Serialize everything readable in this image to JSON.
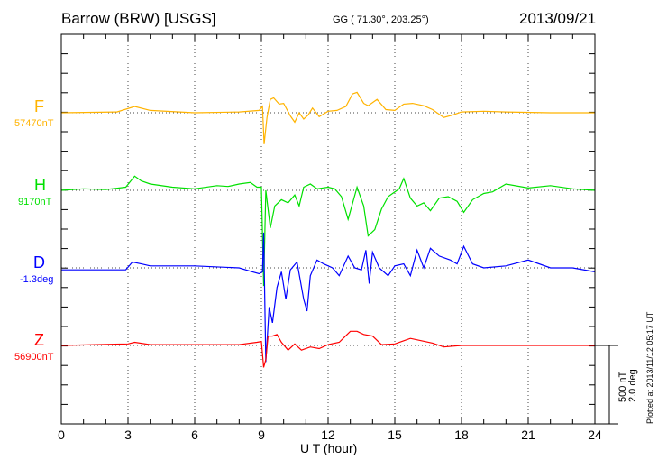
{
  "header": {
    "station": "Barrow (BRW)  [USGS]",
    "coords": "GG ( 71.30°, 203.25°)",
    "date": "2013/09/21"
  },
  "footer": {
    "plotted": "Plotted at 2013/11/12 05:17 UT",
    "scale_nt": "500 nT",
    "scale_deg": "2.0 deg"
  },
  "chart_data": {
    "type": "line",
    "title": "Barrow (BRW)  [USGS]",
    "xlabel": "U T (hour)",
    "xlim": [
      0,
      24
    ],
    "xticks": [
      "0",
      "3",
      "6",
      "9",
      "12",
      "15",
      "18",
      "21",
      "24"
    ],
    "grid": "dotted vertical lines every 3 hours, dotted baselines",
    "scale": {
      "nT_per_bar": 500,
      "deg_per_bar": 2.0
    },
    "colors": {
      "F": "#ffb300",
      "H": "#00e000",
      "D": "#0000ff",
      "Z": "#ff0000"
    },
    "series": [
      {
        "name": "F",
        "baseline_label": "57470nT",
        "unit": "nT",
        "points": [
          [
            0,
            0
          ],
          [
            2.5,
            5
          ],
          [
            3.3,
            40
          ],
          [
            4,
            15
          ],
          [
            6,
            0
          ],
          [
            8,
            5
          ],
          [
            8.9,
            15
          ],
          [
            9.05,
            40
          ],
          [
            9.12,
            -200
          ],
          [
            9.25,
            -30
          ],
          [
            9.4,
            85
          ],
          [
            9.55,
            95
          ],
          [
            9.8,
            55
          ],
          [
            10,
            60
          ],
          [
            10.3,
            -20
          ],
          [
            10.5,
            -60
          ],
          [
            10.7,
            0
          ],
          [
            10.9,
            -40
          ],
          [
            11.1,
            -15
          ],
          [
            11.3,
            30
          ],
          [
            11.6,
            -25
          ],
          [
            12,
            10
          ],
          [
            12.4,
            15
          ],
          [
            12.8,
            40
          ],
          [
            13.1,
            120
          ],
          [
            13.3,
            130
          ],
          [
            13.6,
            60
          ],
          [
            13.8,
            45
          ],
          [
            14.2,
            85
          ],
          [
            14.6,
            20
          ],
          [
            15,
            15
          ],
          [
            15.4,
            55
          ],
          [
            15.8,
            60
          ],
          [
            16.3,
            45
          ],
          [
            16.7,
            20
          ],
          [
            17.2,
            -30
          ],
          [
            17.6,
            -15
          ],
          [
            18,
            5
          ],
          [
            19,
            10
          ],
          [
            20,
            5
          ],
          [
            22,
            0
          ],
          [
            24,
            0
          ]
        ]
      },
      {
        "name": "H",
        "baseline_label": "9170nT",
        "unit": "nT",
        "points": [
          [
            0,
            0
          ],
          [
            1,
            10
          ],
          [
            2,
            5
          ],
          [
            2.9,
            20
          ],
          [
            3.3,
            90
          ],
          [
            3.6,
            60
          ],
          [
            4,
            40
          ],
          [
            5,
            20
          ],
          [
            6,
            10
          ],
          [
            7,
            30
          ],
          [
            7.5,
            25
          ],
          [
            8,
            40
          ],
          [
            8.5,
            50
          ],
          [
            8.8,
            20
          ],
          [
            9.0,
            20
          ],
          [
            9.1,
            -610
          ],
          [
            9.2,
            0
          ],
          [
            9.4,
            -240
          ],
          [
            9.6,
            -100
          ],
          [
            9.9,
            -60
          ],
          [
            10.2,
            -80
          ],
          [
            10.5,
            -30
          ],
          [
            10.7,
            -100
          ],
          [
            10.9,
            20
          ],
          [
            11.2,
            40
          ],
          [
            11.5,
            10
          ],
          [
            12,
            20
          ],
          [
            12.3,
            10
          ],
          [
            12.6,
            -40
          ],
          [
            12.9,
            -185
          ],
          [
            13.3,
            20
          ],
          [
            13.6,
            -100
          ],
          [
            13.8,
            -290
          ],
          [
            14.1,
            -250
          ],
          [
            14.4,
            -120
          ],
          [
            14.7,
            -40
          ],
          [
            15.2,
            10
          ],
          [
            15.4,
            75
          ],
          [
            15.7,
            -50
          ],
          [
            16,
            -100
          ],
          [
            16.3,
            -80
          ],
          [
            16.6,
            -130
          ],
          [
            17,
            -50
          ],
          [
            17.4,
            -40
          ],
          [
            17.8,
            -70
          ],
          [
            18.1,
            -140
          ],
          [
            18.5,
            -60
          ],
          [
            19,
            -20
          ],
          [
            19.4,
            -10
          ],
          [
            20,
            40
          ],
          [
            21,
            15
          ],
          [
            22,
            30
          ],
          [
            23,
            10
          ],
          [
            24,
            0
          ]
        ]
      },
      {
        "name": "D",
        "baseline_label": "-1.3deg",
        "unit": "deg",
        "points": [
          [
            0,
            -0.05
          ],
          [
            2.9,
            -0.05
          ],
          [
            3.2,
            0.15
          ],
          [
            3.6,
            0.1
          ],
          [
            4,
            0.05
          ],
          [
            6,
            0.05
          ],
          [
            8,
            0
          ],
          [
            8.6,
            -0.1
          ],
          [
            8.9,
            -0.15
          ],
          [
            9.05,
            -0.1
          ],
          [
            9.1,
            0.9
          ],
          [
            9.2,
            -2.4
          ],
          [
            9.35,
            -1.0
          ],
          [
            9.5,
            -1.4
          ],
          [
            9.7,
            -0.5
          ],
          [
            9.9,
            -0.1
          ],
          [
            10.1,
            -0.8
          ],
          [
            10.3,
            -0.05
          ],
          [
            10.6,
            0.15
          ],
          [
            10.9,
            -0.8
          ],
          [
            11.05,
            -1.1
          ],
          [
            11.2,
            -0.2
          ],
          [
            11.5,
            0.2
          ],
          [
            11.8,
            0.1
          ],
          [
            12.2,
            0
          ],
          [
            12.5,
            -0.2
          ],
          [
            12.9,
            0.3
          ],
          [
            13.2,
            0
          ],
          [
            13.5,
            -0.05
          ],
          [
            13.7,
            0.45
          ],
          [
            13.85,
            -0.4
          ],
          [
            14,
            0.4
          ],
          [
            14.3,
            0
          ],
          [
            14.7,
            -0.2
          ],
          [
            15,
            0.05
          ],
          [
            15.4,
            0.1
          ],
          [
            15.7,
            -0.2
          ],
          [
            16,
            0.45
          ],
          [
            16.3,
            0
          ],
          [
            16.6,
            0.5
          ],
          [
            17,
            0.3
          ],
          [
            17.5,
            0.2
          ],
          [
            17.8,
            0.1
          ],
          [
            18.1,
            0.55
          ],
          [
            18.5,
            0.1
          ],
          [
            19,
            0
          ],
          [
            20,
            0.05
          ],
          [
            21,
            0.2
          ],
          [
            22,
            0
          ],
          [
            23,
            0
          ],
          [
            24,
            -0.1
          ]
        ]
      },
      {
        "name": "Z",
        "baseline_label": "56900nT",
        "unit": "nT",
        "points": [
          [
            0,
            0
          ],
          [
            3,
            10
          ],
          [
            3.3,
            20
          ],
          [
            4,
            5
          ],
          [
            8,
            5
          ],
          [
            8.8,
            20
          ],
          [
            9.0,
            25
          ],
          [
            9.1,
            -140
          ],
          [
            9.2,
            -90
          ],
          [
            9.3,
            60
          ],
          [
            9.5,
            60
          ],
          [
            9.7,
            70
          ],
          [
            9.9,
            20
          ],
          [
            10.2,
            -30
          ],
          [
            10.5,
            10
          ],
          [
            10.8,
            -30
          ],
          [
            11.2,
            -10
          ],
          [
            11.6,
            -20
          ],
          [
            12,
            5
          ],
          [
            12.5,
            20
          ],
          [
            13,
            90
          ],
          [
            13.3,
            90
          ],
          [
            13.6,
            70
          ],
          [
            14,
            60
          ],
          [
            14.4,
            5
          ],
          [
            15,
            10
          ],
          [
            15.4,
            30
          ],
          [
            15.7,
            45
          ],
          [
            16.2,
            30
          ],
          [
            16.7,
            15
          ],
          [
            17.2,
            -10
          ],
          [
            18,
            0
          ],
          [
            19,
            0
          ],
          [
            24,
            0
          ]
        ]
      }
    ]
  }
}
